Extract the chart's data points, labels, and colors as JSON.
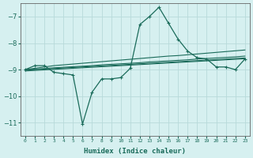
{
  "xlabel": "Humidex (Indice chaleur)",
  "bg_color": "#d6f0f0",
  "grid_color": "#b8dada",
  "line_color": "#1a6b5a",
  "xlim": [
    -0.5,
    23.5
  ],
  "ylim": [
    -11.5,
    -6.5
  ],
  "yticks": [
    -11,
    -10,
    -9,
    -8,
    -7
  ],
  "xticks": [
    0,
    1,
    2,
    3,
    4,
    5,
    6,
    7,
    8,
    9,
    10,
    11,
    12,
    13,
    14,
    15,
    16,
    17,
    18,
    19,
    20,
    21,
    22,
    23
  ],
  "main_series_x": [
    0,
    1,
    2,
    3,
    4,
    5,
    6,
    7,
    8,
    9,
    10,
    11,
    12,
    13,
    14,
    15,
    16,
    17,
    18,
    19,
    20,
    21,
    22,
    23
  ],
  "main_series_y": [
    -9.0,
    -8.85,
    -8.85,
    -9.1,
    -9.15,
    -9.2,
    -11.05,
    -9.85,
    -9.35,
    -9.35,
    -9.3,
    -8.95,
    -7.3,
    -7.0,
    -6.65,
    -7.25,
    -7.85,
    -8.3,
    -8.55,
    -8.6,
    -8.9,
    -8.9,
    -9.0,
    -8.6
  ],
  "flat_lines": [
    [
      -9.0,
      -8.95,
      -8.9,
      -8.85,
      -8.82,
      -8.79,
      -8.76,
      -8.73,
      -8.7,
      -8.67,
      -8.64,
      -8.61,
      -8.58,
      -8.55,
      -8.52,
      -8.49,
      -8.47,
      -8.44,
      -8.41,
      -8.38,
      -8.35,
      -8.32,
      -8.29,
      -8.26
    ],
    [
      -9.0,
      -8.98,
      -8.96,
      -8.93,
      -8.91,
      -8.89,
      -8.87,
      -8.85,
      -8.82,
      -8.8,
      -8.78,
      -8.76,
      -8.74,
      -8.71,
      -8.69,
      -8.67,
      -8.65,
      -8.63,
      -8.6,
      -8.58,
      -8.56,
      -8.54,
      -8.52,
      -8.49
    ],
    [
      -9.02,
      -9.0,
      -8.98,
      -8.96,
      -8.94,
      -8.92,
      -8.9,
      -8.88,
      -8.86,
      -8.84,
      -8.82,
      -8.8,
      -8.78,
      -8.76,
      -8.74,
      -8.72,
      -8.7,
      -8.68,
      -8.66,
      -8.64,
      -8.62,
      -8.6,
      -8.58,
      -8.56
    ],
    [
      -9.05,
      -9.03,
      -9.01,
      -8.99,
      -8.97,
      -8.95,
      -8.93,
      -8.91,
      -8.89,
      -8.87,
      -8.85,
      -8.83,
      -8.81,
      -8.79,
      -8.77,
      -8.75,
      -8.73,
      -8.71,
      -8.69,
      -8.67,
      -8.65,
      -8.63,
      -8.61,
      -8.59
    ]
  ]
}
